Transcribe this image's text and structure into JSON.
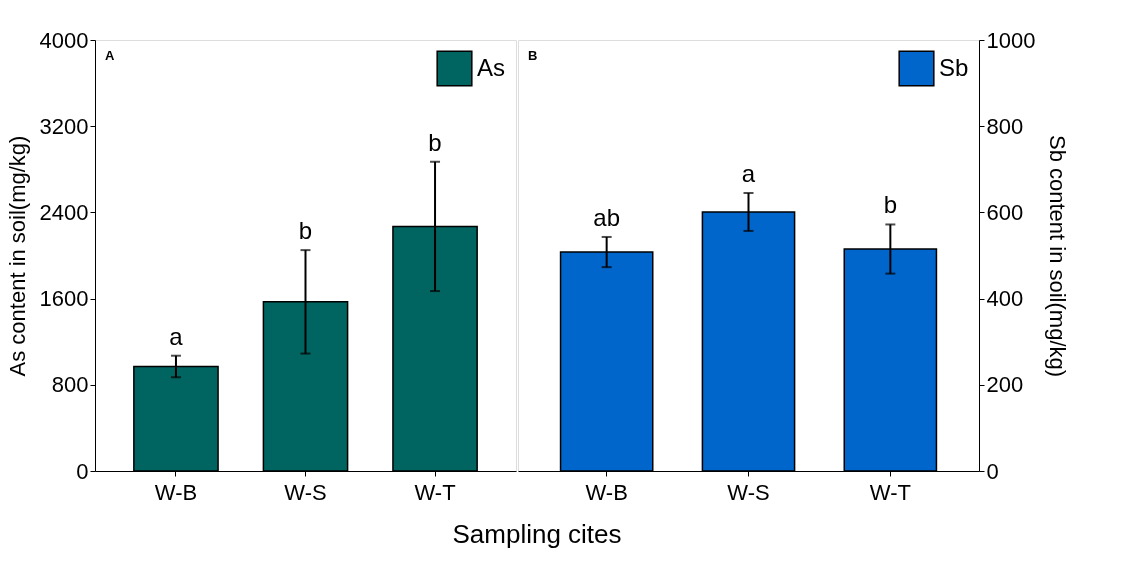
{
  "chart_data": [
    {
      "type": "bar",
      "categories": [
        "W-B",
        "W-S",
        "W-T"
      ],
      "xlabel": "Sampling cites",
      "ylabel": "As content in soil(mg/kg)",
      "series": [
        {
          "name": "As",
          "color": "#006560",
          "values": [
            970,
            1570,
            2270
          ],
          "errors": [
            100,
            480,
            600
          ]
        }
      ],
      "ylim": [
        0,
        4000
      ],
      "yticks": [
        0,
        800,
        1600,
        2400,
        3200,
        4000
      ],
      "grid": false,
      "legend": "top right",
      "annotations": [
        "A",
        "a",
        "b",
        "b"
      ]
    },
    {
      "type": "bar",
      "categories": [
        "W-B",
        "W-S",
        "W-T"
      ],
      "y2label": "Sb content in soil(mg/kg)",
      "series": [
        {
          "name": "Sb",
          "color": "#0066cc",
          "values": [
            508,
            601,
            515
          ],
          "errors": [
            35,
            44,
            57
          ],
          "axis": "y2"
        }
      ],
      "y2lim": [
        0,
        1000
      ],
      "y2ticks": [
        0,
        200,
        400,
        600,
        800,
        1000
      ],
      "grid": false,
      "legend": "top right",
      "annotations": [
        "B",
        "ab",
        "a",
        "b"
      ]
    }
  ]
}
